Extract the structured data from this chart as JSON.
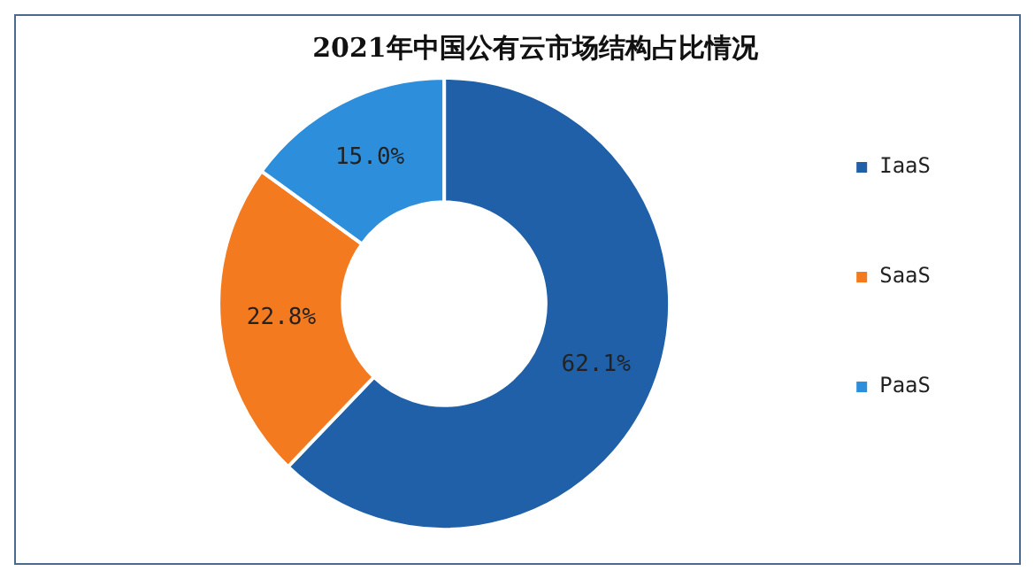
{
  "chart_data": {
    "type": "donut",
    "title": "2021年中国公有云市场结构占比情况",
    "categories": [
      "IaaS",
      "SaaS",
      "PaaS"
    ],
    "values": [
      62.1,
      22.8,
      15.0
    ],
    "colors": [
      "#1f60a8",
      "#f47a20",
      "#2d8fdc"
    ],
    "value_labels": [
      "62.1%",
      "22.8%",
      "15.0%"
    ],
    "legend": "right"
  }
}
